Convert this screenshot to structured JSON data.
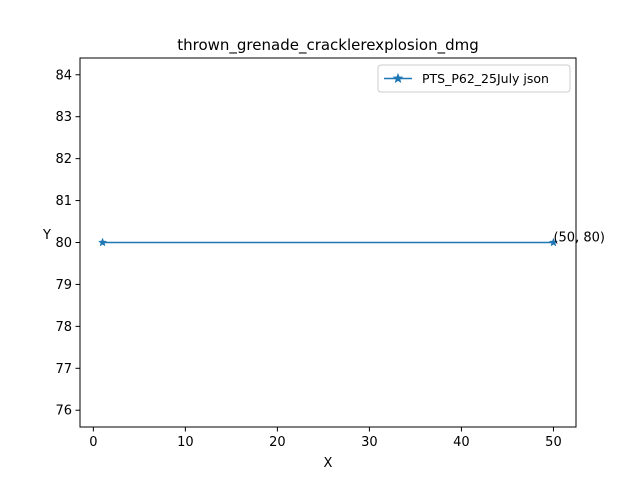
{
  "chart_data": {
    "type": "line",
    "title": "thrown_grenade_cracklerexplosion_dmg",
    "xlabel": "X",
    "ylabel": "Y",
    "xlim": [
      -1.45,
      52.45
    ],
    "ylim": [
      75.6,
      84.4
    ],
    "xticks": [
      0,
      10,
      20,
      30,
      40,
      50
    ],
    "yticks": [
      76,
      77,
      78,
      79,
      80,
      81,
      82,
      83,
      84
    ],
    "grid": false,
    "legend_position": "top-right",
    "series": [
      {
        "name": "PTS_P62_25July json",
        "color": "#1f77b4",
        "marker": "star",
        "x": [
          1,
          50
        ],
        "y": [
          80,
          80
        ]
      }
    ],
    "annotations": [
      {
        "text": "(50, 80)",
        "x": 50,
        "y": 80
      }
    ]
  }
}
